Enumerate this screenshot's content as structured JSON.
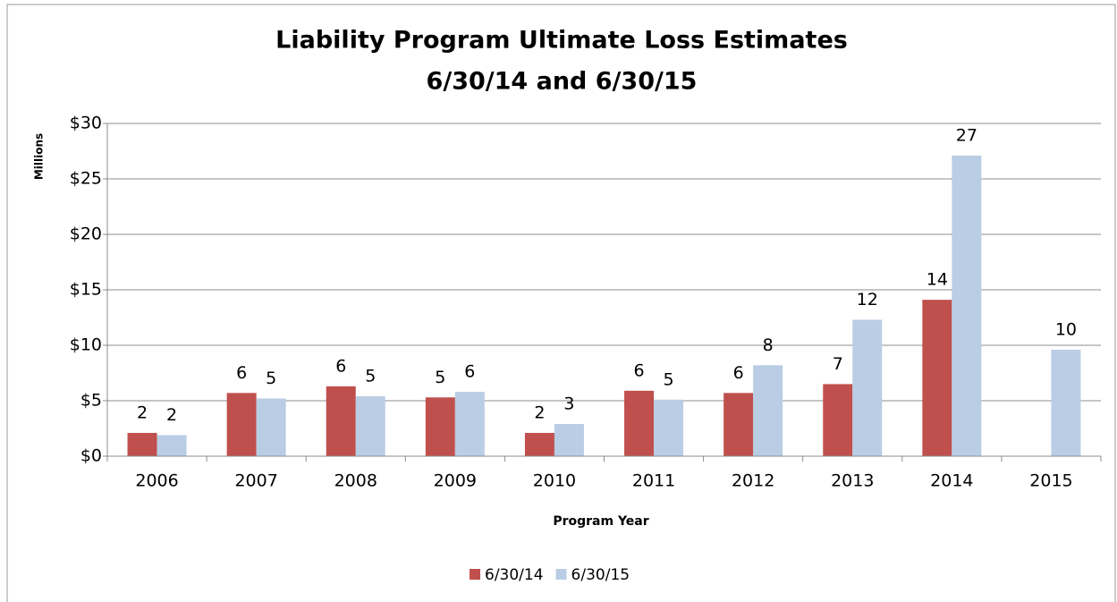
{
  "chart_data": {
    "type": "bar",
    "title": [
      "Liability Program Ultimate Loss Estimates",
      "6/30/14 and 6/30/15"
    ],
    "x_label": "Program Year",
    "y_label": "Millions",
    "categories": [
      "2006",
      "2007",
      "2008",
      "2009",
      "2010",
      "2011",
      "2012",
      "2013",
      "2014",
      "2015"
    ],
    "series": [
      {
        "name": "6/30/14",
        "color": "#c0504d",
        "values": [
          2.1,
          5.7,
          6.3,
          5.3,
          2.1,
          5.9,
          5.7,
          6.5,
          14.1,
          null
        ],
        "value_labels": [
          "2",
          "6",
          "6",
          "5",
          "2",
          "6",
          "6",
          "7",
          "14",
          null
        ]
      },
      {
        "name": "6/30/15",
        "color": "#b9cde5",
        "values": [
          1.9,
          5.2,
          5.4,
          5.8,
          2.9,
          5.1,
          8.2,
          12.3,
          27.1,
          9.6
        ],
        "value_labels": [
          "2",
          "5",
          "5",
          "6",
          "3",
          "5",
          "8",
          "12",
          "27",
          "10"
        ]
      }
    ],
    "ylim": [
      0,
      30
    ],
    "yticks": [
      {
        "value": 0,
        "label": "$0"
      },
      {
        "value": 5,
        "label": "$5"
      },
      {
        "value": 10,
        "label": "$10"
      },
      {
        "value": 15,
        "label": "$15"
      },
      {
        "value": 20,
        "label": "$20"
      },
      {
        "value": 25,
        "label": "$25"
      },
      {
        "value": 30,
        "label": "$30"
      }
    ],
    "grid": true,
    "legend": "bottom"
  }
}
